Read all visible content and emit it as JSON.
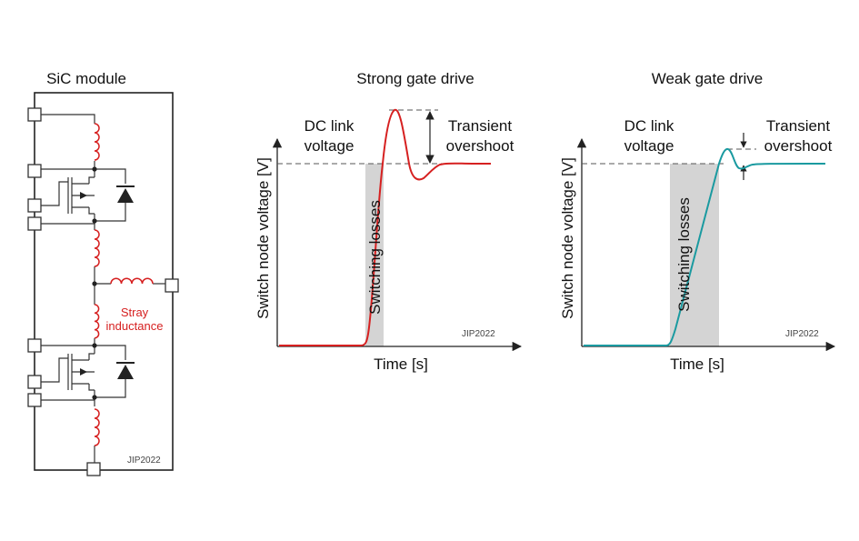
{
  "module": {
    "title": "SiC module",
    "stray_label_line1": "Stray",
    "stray_label_line2": "inductance",
    "watermark": "JIP2022"
  },
  "strong": {
    "title": "Strong gate drive",
    "dc_link_line1": "DC link",
    "dc_link_line2": "voltage",
    "overshoot_line1": "Transient",
    "overshoot_line2": "overshoot",
    "switching_label": "Switching losses",
    "y_axis_label": "Switch node voltage [V]",
    "x_axis_label": "Time [s]",
    "watermark": "JIP2022"
  },
  "weak": {
    "title": "Weak gate drive",
    "dc_link_line1": "DC link",
    "dc_link_line2": "voltage",
    "overshoot_line1": "Transient",
    "overshoot_line2": "overshoot",
    "switching_label": "Switching losses",
    "y_axis_label": "Switch node voltage [V]",
    "x_axis_label": "Time [s]",
    "watermark": "JIP2022"
  },
  "colors": {
    "strong_trace": "#d62020",
    "weak_trace": "#1a9aa0",
    "inductor": "#d62020",
    "stray_text": "#d62020",
    "shade": "#d4d4d4",
    "line": "#333333"
  }
}
